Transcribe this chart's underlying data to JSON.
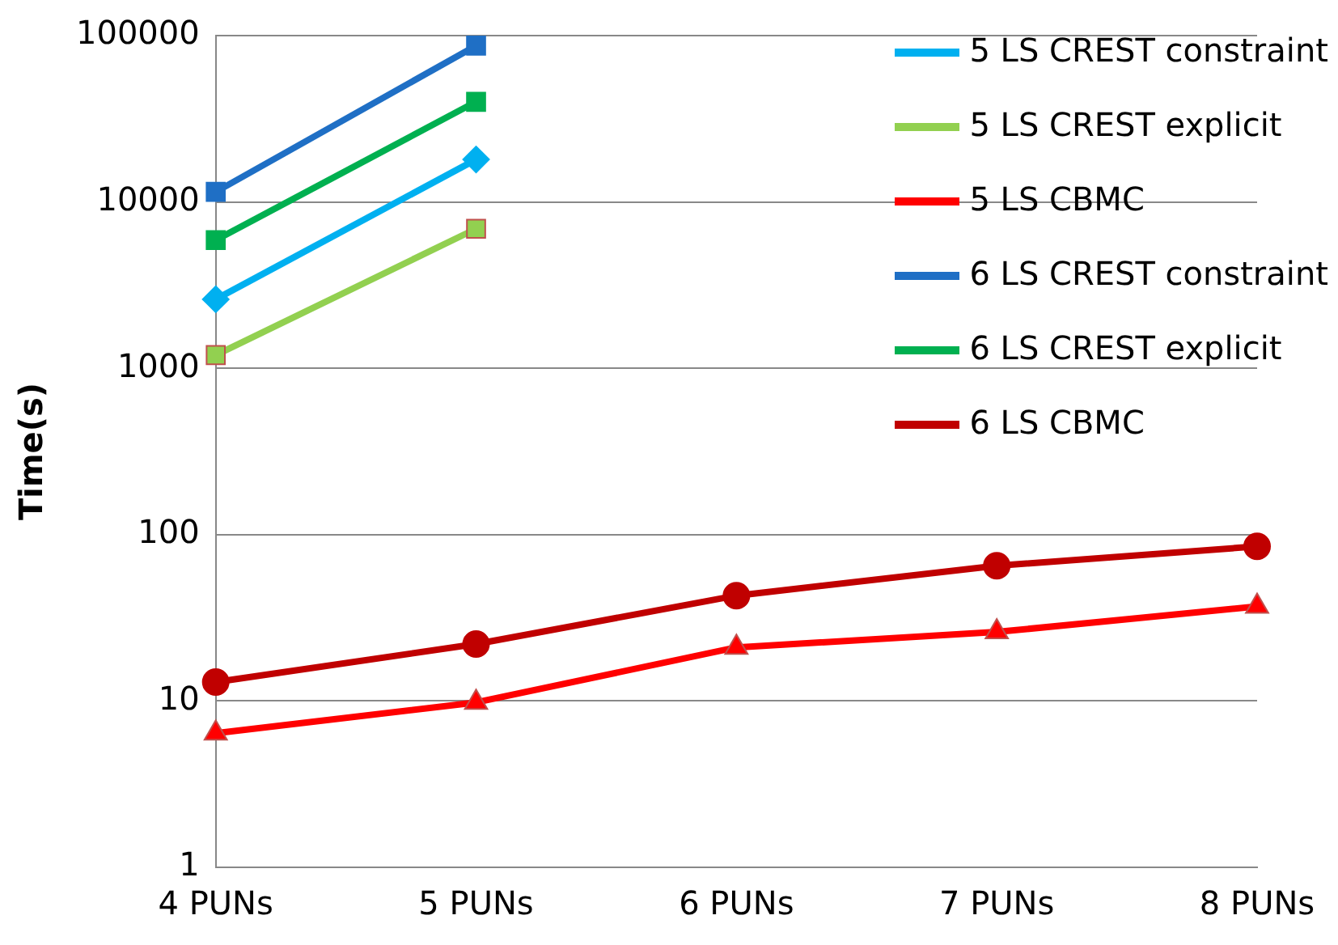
{
  "chart_data": {
    "type": "line",
    "ylabel": "Time(s)",
    "log": "y",
    "ylim": [
      1,
      100000
    ],
    "yticks": [
      1,
      10,
      100,
      1000,
      10000,
      100000
    ],
    "grid": "y",
    "legend": "top right",
    "categories": [
      "4 PUNs",
      "5 PUNs",
      "6 PUNs",
      "7 PUNs",
      "8 PUNs"
    ],
    "series": [
      {
        "name": "5 LS CREST constraint",
        "color": "#00b0f0",
        "marker": "diamond",
        "values": [
          2600,
          18000,
          null,
          null,
          null
        ]
      },
      {
        "name": "5 LS CREST explicit",
        "color": "#92d050",
        "marker": "square",
        "values": [
          1200,
          6900,
          null,
          null,
          null
        ]
      },
      {
        "name": "5 LS CBMC",
        "color": "#ff0000",
        "marker": "triangle",
        "values": [
          6.4,
          9.8,
          21,
          26,
          37
        ]
      },
      {
        "name": "6 LS CREST constraint",
        "color": "#1f6fc5",
        "marker": "square",
        "values": [
          11500,
          87000,
          null,
          null,
          null
        ]
      },
      {
        "name": "6 LS CREST explicit",
        "color": "#00b050",
        "marker": "square",
        "values": [
          5900,
          40000,
          null,
          null,
          null
        ]
      },
      {
        "name": "6 LS CBMC",
        "color": "#c00000",
        "marker": "circle",
        "values": [
          13,
          22,
          43,
          65,
          85
        ]
      }
    ]
  }
}
